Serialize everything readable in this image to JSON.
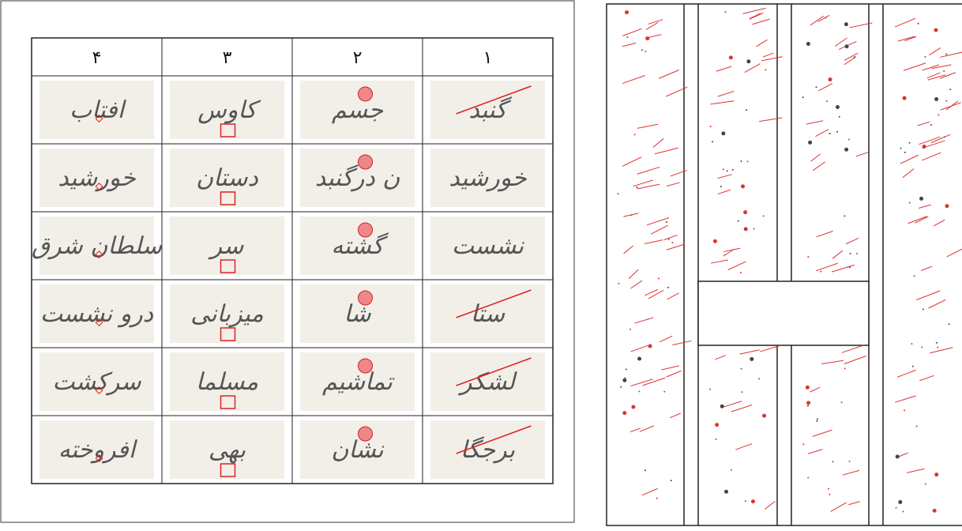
{
  "table": {
    "header": [
      "۴",
      "۳",
      "۲",
      "۱"
    ],
    "rows": [
      [
        "افتاب",
        "کاوس",
        "جسم",
        "گنبد"
      ],
      [
        "خورشید",
        "دستان",
        "ن درگنبد",
        "خورشید"
      ],
      [
        "سلطان شرق",
        "سر",
        "گشته",
        "نشست"
      ],
      [
        "درو نشست",
        "میزبانی",
        "شا",
        "ستا"
      ],
      [
        "سرکشت",
        "مسلما",
        "تماشیم",
        "لشکر"
      ],
      [
        "افروخته",
        "بهی",
        "نشان",
        "برجگا"
      ]
    ]
  }
}
